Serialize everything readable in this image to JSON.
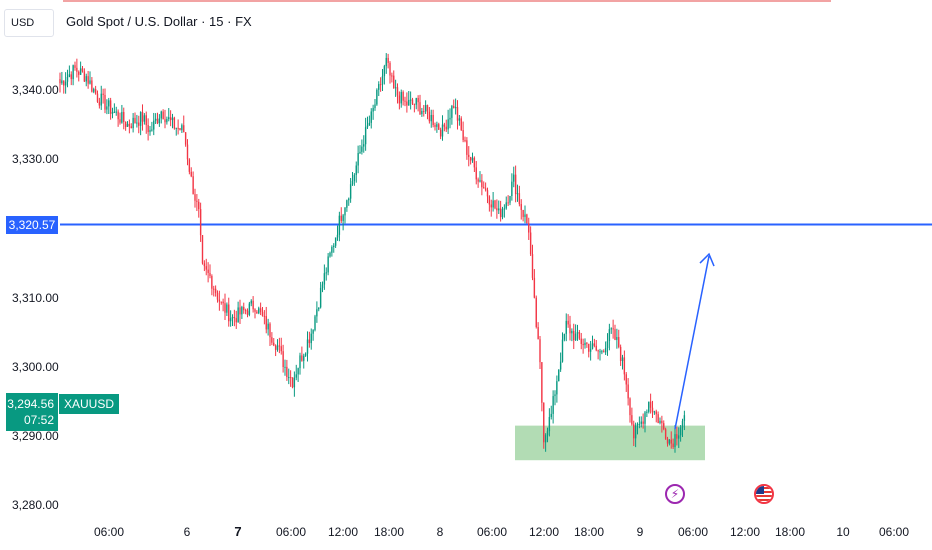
{
  "header": {
    "currency": "USD",
    "title": "Gold Spot / U.S. Dollar · 15 · FX"
  },
  "chart_data": {
    "type": "candlestick",
    "symbol": "XAUUSD",
    "y_range": [
      3277,
      3350
    ],
    "y_ticks": [
      {
        "value": 3340,
        "label": "3,340.00"
      },
      {
        "value": 3330,
        "label": "3,330.00"
      },
      {
        "value": 3310,
        "label": "3,310.00"
      },
      {
        "value": 3300,
        "label": "3,300.00"
      },
      {
        "value": 3290,
        "label": "3,290.00"
      },
      {
        "value": 3280,
        "label": "3,280.00"
      }
    ],
    "x_ticks": [
      {
        "label": "06:00",
        "bold": false
      },
      {
        "label": "6",
        "bold": false
      },
      {
        "label": "7",
        "bold": true
      },
      {
        "label": "06:00",
        "bold": false
      },
      {
        "label": "12:00",
        "bold": false
      },
      {
        "label": "18:00",
        "bold": false
      },
      {
        "label": "8",
        "bold": false
      },
      {
        "label": "06:00",
        "bold": false
      },
      {
        "label": "12:00",
        "bold": false
      },
      {
        "label": "18:00",
        "bold": false
      },
      {
        "label": "9",
        "bold": false
      },
      {
        "label": "06:00",
        "bold": false
      },
      {
        "label": "12:00",
        "bold": false
      },
      {
        "label": "18:00",
        "bold": false
      },
      {
        "label": "10",
        "bold": false
      },
      {
        "label": "06:00",
        "bold": false
      }
    ],
    "horizontal_line": {
      "value": 3320.57,
      "label": "3,320.57",
      "color": "#2962ff"
    },
    "current_price": {
      "value": 3294.56,
      "label": "3,294.56",
      "countdown": "07:52",
      "color": "#089981"
    },
    "demand_zone": {
      "y_low": 3286.5,
      "y_high": 3291.5,
      "color": "#a5d6a7"
    },
    "projection_arrow": {
      "from_value": 3291,
      "to_value": 3316,
      "color": "#2962ff"
    },
    "anchors": [
      [
        0,
        3341
      ],
      [
        8,
        3343
      ],
      [
        14,
        3342
      ],
      [
        20,
        3339
      ],
      [
        28,
        3337
      ],
      [
        36,
        3335
      ],
      [
        44,
        3336
      ],
      [
        48,
        3334
      ],
      [
        54,
        3337
      ],
      [
        60,
        3335
      ],
      [
        66,
        3334
      ],
      [
        70,
        3327
      ],
      [
        74,
        3322
      ],
      [
        76,
        3314
      ],
      [
        80,
        3313
      ],
      [
        86,
        3309
      ],
      [
        92,
        3307
      ],
      [
        98,
        3308
      ],
      [
        104,
        3309
      ],
      [
        108,
        3307
      ],
      [
        112,
        3305
      ],
      [
        116,
        3303
      ],
      [
        120,
        3300
      ],
      [
        124,
        3298
      ],
      [
        128,
        3301
      ],
      [
        134,
        3305
      ],
      [
        140,
        3312
      ],
      [
        146,
        3318
      ],
      [
        150,
        3322
      ],
      [
        156,
        3327
      ],
      [
        162,
        3333
      ],
      [
        166,
        3336
      ],
      [
        170,
        3340
      ],
      [
        174,
        3344
      ],
      [
        178,
        3340
      ],
      [
        184,
        3338
      ],
      [
        190,
        3338
      ],
      [
        198,
        3336
      ],
      [
        204,
        3334
      ],
      [
        210,
        3338
      ],
      [
        216,
        3332
      ],
      [
        222,
        3328
      ],
      [
        228,
        3325
      ],
      [
        234,
        3322
      ],
      [
        238,
        3324
      ],
      [
        242,
        3327
      ],
      [
        246,
        3323
      ],
      [
        250,
        3320
      ],
      [
        252,
        3312
      ],
      [
        256,
        3300
      ],
      [
        258,
        3290
      ],
      [
        262,
        3293
      ],
      [
        266,
        3300
      ],
      [
        270,
        3306
      ],
      [
        276,
        3304
      ],
      [
        282,
        3303
      ],
      [
        288,
        3302
      ],
      [
        294,
        3305
      ],
      [
        298,
        3303
      ],
      [
        302,
        3298
      ],
      [
        306,
        3290
      ],
      [
        310,
        3292
      ],
      [
        314,
        3295
      ],
      [
        318,
        3293
      ],
      [
        322,
        3291
      ],
      [
        326,
        3289
      ],
      [
        330,
        3291
      ],
      [
        333,
        3293
      ]
    ]
  }
}
